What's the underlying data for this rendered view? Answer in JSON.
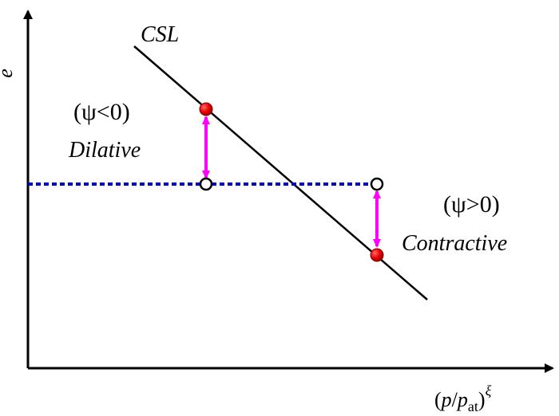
{
  "diagram": {
    "axes": {
      "y_label": "e",
      "x_label": {
        "open": "(",
        "p": "p",
        "slash": "/",
        "p2": "p",
        "sub": "at",
        "close": ")",
        "sup": "ξ"
      }
    },
    "csl_label": "CSL",
    "dilative": {
      "state": "(ψ<0)",
      "name": "Dilative"
    },
    "contractive": {
      "state": "(ψ>0)",
      "name": "Contractive"
    },
    "colors": {
      "axis": "#000000",
      "csl_line": "#000000",
      "reference_line": "#0000cc",
      "arrow": "#ff00ff",
      "state_point": "#e60000"
    }
  }
}
